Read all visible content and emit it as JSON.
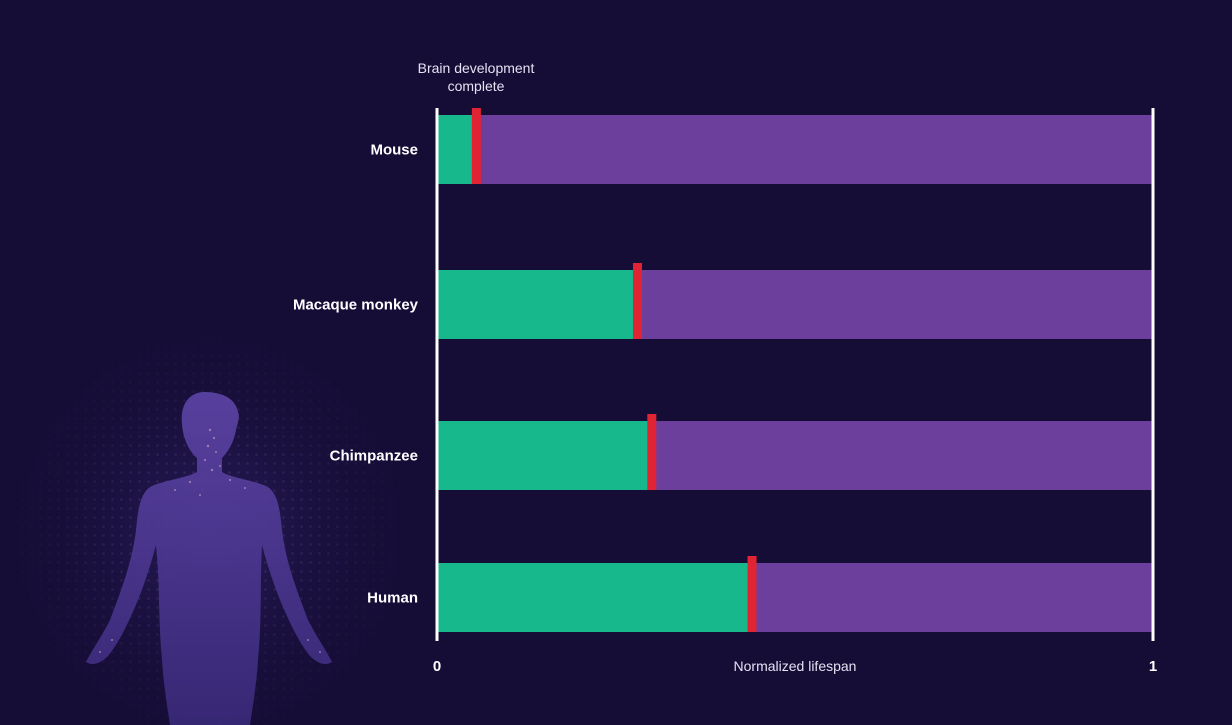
{
  "chart_data": {
    "type": "bar",
    "stacked": true,
    "orientation": "horizontal",
    "categories": [
      "Mouse",
      "Macaque monkey",
      "Chimpanzee",
      "Human"
    ],
    "marker_values": [
      0.055,
      0.28,
      0.3,
      0.44
    ],
    "xlim": [
      0,
      1
    ],
    "x_ticks": [
      "0",
      "1"
    ],
    "xlabel": "Normalized lifespan",
    "annotation": [
      "Brain development",
      "complete"
    ],
    "colors": {
      "development": "#17b88b",
      "remaining": "#6d3f9c",
      "marker": "#e02434",
      "axis": "#ffffff",
      "background": "#160d37"
    },
    "grid": false,
    "legend": "none"
  },
  "illustration": {
    "name": "human-silhouette",
    "color": "#4b3690"
  }
}
